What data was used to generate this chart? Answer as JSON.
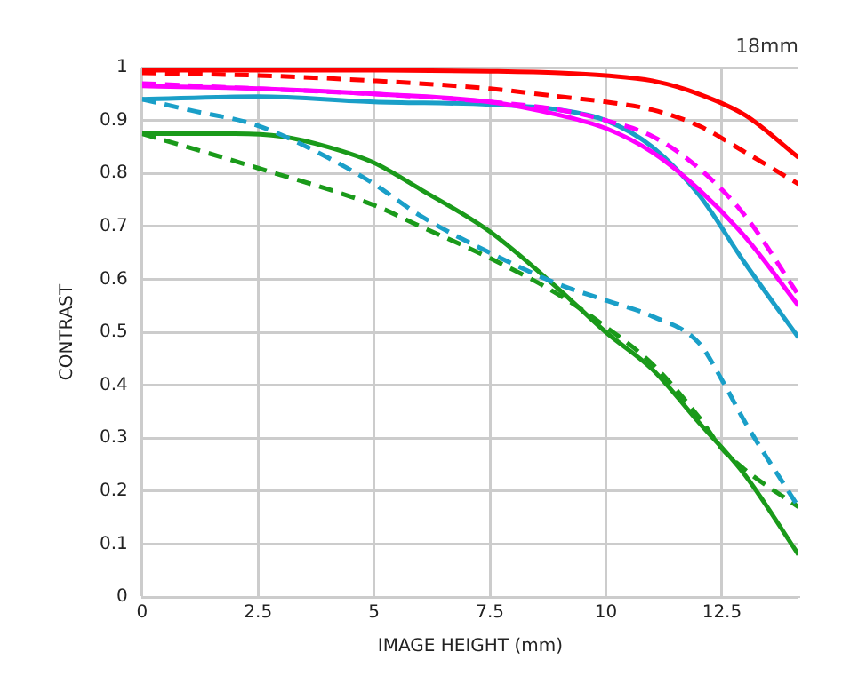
{
  "chart_data": {
    "type": "line",
    "xlabel": "IMAGE HEIGHT (mm)",
    "ylabel": "CONTRAST",
    "annotations": [
      "18mm"
    ],
    "xlim": [
      0,
      14.15
    ],
    "xticks": [
      0,
      2.5,
      5,
      7.5,
      10,
      12.5
    ],
    "ylim": [
      0,
      1
    ],
    "yticks": [
      0,
      0.1,
      0.2,
      0.3,
      0.4,
      0.5,
      0.6,
      0.7,
      0.8,
      0.9,
      1
    ],
    "grid": true,
    "legend": false,
    "marker": "none",
    "x": [
      0,
      2.5,
      5,
      7.5,
      9,
      10,
      11,
      12,
      13,
      14.15
    ],
    "series": [
      {
        "color": "#ff0000",
        "line_style": "solid",
        "values": [
          0.995,
          0.995,
          0.995,
          0.993,
          0.99,
          0.985,
          0.975,
          0.95,
          0.91,
          0.83
        ]
      },
      {
        "color": "#ff0000",
        "line_style": "dashed",
        "values": [
          0.99,
          0.985,
          0.975,
          0.96,
          0.945,
          0.935,
          0.92,
          0.89,
          0.84,
          0.78
        ]
      },
      {
        "color": "#ff00ff",
        "line_style": "solid",
        "values": [
          0.965,
          0.96,
          0.95,
          0.935,
          0.91,
          0.885,
          0.84,
          0.77,
          0.68,
          0.55
        ]
      },
      {
        "color": "#ff00ff",
        "line_style": "dashed",
        "values": [
          0.97,
          0.96,
          0.95,
          0.935,
          0.92,
          0.9,
          0.87,
          0.81,
          0.72,
          0.57
        ]
      },
      {
        "color": "#1a9fc8",
        "line_style": "solid",
        "values": [
          0.94,
          0.945,
          0.935,
          0.93,
          0.92,
          0.9,
          0.85,
          0.76,
          0.63,
          0.49
        ]
      },
      {
        "color": "#1a9fc8",
        "line_style": "dashed",
        "x": [
          0,
          1,
          2.5,
          4,
          5,
          6,
          7.5,
          9,
          10,
          11,
          12,
          12.5,
          13,
          14.15
        ],
        "values": [
          0.94,
          0.92,
          0.89,
          0.83,
          0.78,
          0.72,
          0.65,
          0.59,
          0.56,
          0.53,
          0.48,
          0.41,
          0.33,
          0.17
        ]
      },
      {
        "color": "#1a9a1a",
        "line_style": "solid",
        "x": [
          0,
          2,
          3,
          4,
          5,
          6,
          7.5,
          9,
          10,
          11,
          12,
          13,
          14.15
        ],
        "values": [
          0.875,
          0.875,
          0.87,
          0.85,
          0.82,
          0.77,
          0.69,
          0.58,
          0.5,
          0.43,
          0.33,
          0.23,
          0.08
        ]
      },
      {
        "color": "#1a9a1a",
        "line_style": "dashed",
        "x": [
          0,
          2.5,
          5,
          6,
          7.5,
          9,
          10,
          11,
          12,
          12.5,
          13,
          14.15
        ],
        "values": [
          0.875,
          0.81,
          0.74,
          0.7,
          0.64,
          0.57,
          0.51,
          0.44,
          0.34,
          0.28,
          0.24,
          0.17
        ]
      }
    ]
  }
}
